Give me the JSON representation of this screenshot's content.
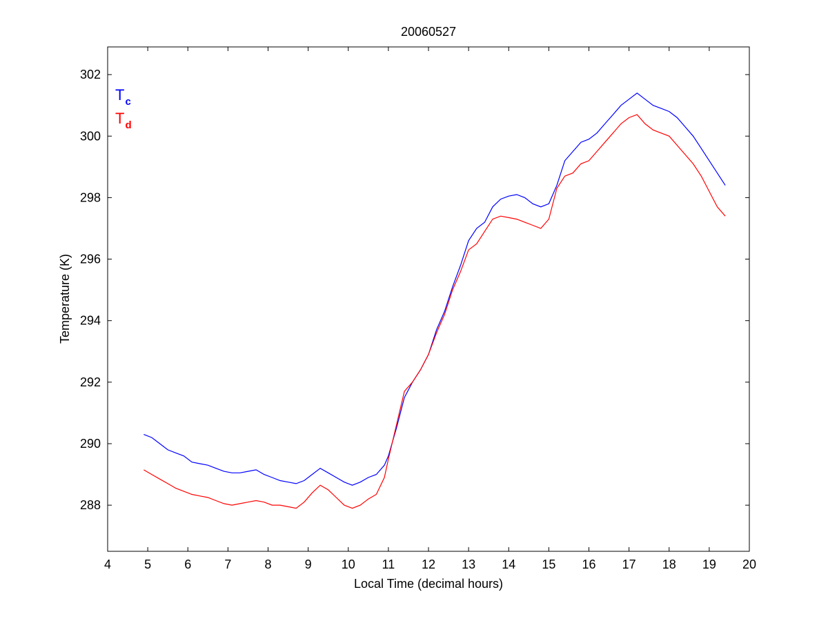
{
  "chart_data": {
    "type": "line",
    "title": "20060527",
    "xlabel": "Local Time (decimal hours)",
    "ylabel": "Temperature (K)",
    "xlim": [
      4,
      20
    ],
    "ylim": [
      286.5,
      302.9
    ],
    "xticks": [
      4,
      5,
      6,
      7,
      8,
      9,
      10,
      11,
      12,
      13,
      14,
      15,
      16,
      17,
      18,
      19,
      20
    ],
    "yticks": [
      288,
      290,
      292,
      294,
      296,
      298,
      300,
      302
    ],
    "grid": false,
    "legend_position": "top-left",
    "series": [
      {
        "name": "T",
        "subscript": "c",
        "color": "#0000ff",
        "x": [
          4.9,
          5.1,
          5.3,
          5.5,
          5.7,
          5.9,
          6.1,
          6.3,
          6.5,
          6.7,
          6.9,
          7.1,
          7.3,
          7.5,
          7.7,
          7.9,
          8.1,
          8.3,
          8.5,
          8.7,
          8.9,
          9.1,
          9.3,
          9.5,
          9.7,
          9.9,
          10.1,
          10.3,
          10.5,
          10.7,
          10.9,
          11.0,
          11.2,
          11.4,
          11.6,
          11.8,
          12.0,
          12.2,
          12.4,
          12.6,
          12.8,
          13.0,
          13.2,
          13.4,
          13.6,
          13.8,
          14.0,
          14.2,
          14.4,
          14.6,
          14.8,
          15.0,
          15.2,
          15.4,
          15.6,
          15.8,
          16.0,
          16.2,
          16.4,
          16.6,
          16.8,
          17.0,
          17.2,
          17.4,
          17.6,
          17.8,
          18.0,
          18.2,
          18.4,
          18.6,
          18.8,
          19.0,
          19.2,
          19.4
        ],
        "values": [
          290.3,
          290.2,
          290.0,
          289.8,
          289.7,
          289.6,
          289.4,
          289.35,
          289.3,
          289.2,
          289.1,
          289.05,
          289.05,
          289.1,
          289.15,
          289.0,
          288.9,
          288.8,
          288.75,
          288.7,
          288.8,
          289.0,
          289.2,
          289.05,
          288.9,
          288.75,
          288.65,
          288.75,
          288.9,
          289.0,
          289.3,
          289.6,
          290.5,
          291.5,
          292.0,
          292.4,
          292.9,
          293.7,
          294.3,
          295.1,
          295.8,
          296.6,
          297.0,
          297.2,
          297.7,
          297.95,
          298.05,
          298.1,
          298.0,
          297.8,
          297.7,
          297.8,
          298.4,
          299.2,
          299.5,
          299.8,
          299.9,
          300.1,
          300.4,
          300.7,
          301.0,
          301.2,
          301.4,
          301.2,
          301.0,
          300.9,
          300.8,
          300.6,
          300.3,
          300.0,
          299.6,
          299.2,
          298.8,
          298.4
        ]
      },
      {
        "name": "T",
        "subscript": "d",
        "color": "#ff0000",
        "x": [
          4.9,
          5.1,
          5.3,
          5.5,
          5.7,
          5.9,
          6.1,
          6.3,
          6.5,
          6.7,
          6.9,
          7.1,
          7.3,
          7.5,
          7.7,
          7.9,
          8.1,
          8.3,
          8.5,
          8.7,
          8.9,
          9.1,
          9.3,
          9.5,
          9.7,
          9.9,
          10.1,
          10.3,
          10.5,
          10.7,
          10.9,
          11.0,
          11.2,
          11.4,
          11.6,
          11.8,
          12.0,
          12.2,
          12.4,
          12.6,
          12.8,
          13.0,
          13.2,
          13.4,
          13.6,
          13.8,
          14.0,
          14.2,
          14.4,
          14.6,
          14.8,
          15.0,
          15.2,
          15.4,
          15.6,
          15.8,
          16.0,
          16.2,
          16.4,
          16.6,
          16.8,
          17.0,
          17.2,
          17.4,
          17.6,
          17.8,
          18.0,
          18.2,
          18.4,
          18.6,
          18.8,
          19.0,
          19.2,
          19.4
        ],
        "values": [
          289.15,
          289.0,
          288.85,
          288.7,
          288.55,
          288.45,
          288.35,
          288.3,
          288.25,
          288.15,
          288.05,
          288.0,
          288.05,
          288.1,
          288.15,
          288.1,
          288.0,
          288.0,
          287.95,
          287.9,
          288.1,
          288.4,
          288.65,
          288.5,
          288.25,
          288.0,
          287.9,
          288.0,
          288.2,
          288.35,
          288.9,
          289.5,
          290.6,
          291.7,
          292.0,
          292.4,
          292.9,
          293.6,
          294.2,
          295.0,
          295.6,
          296.3,
          296.5,
          296.9,
          297.3,
          297.4,
          297.35,
          297.3,
          297.2,
          297.1,
          297.0,
          297.3,
          298.3,
          298.7,
          298.8,
          299.1,
          299.2,
          299.5,
          299.8,
          300.1,
          300.4,
          300.6,
          300.7,
          300.4,
          300.2,
          300.1,
          300.0,
          299.7,
          299.4,
          299.1,
          298.7,
          298.2,
          297.7,
          297.4
        ]
      }
    ]
  }
}
